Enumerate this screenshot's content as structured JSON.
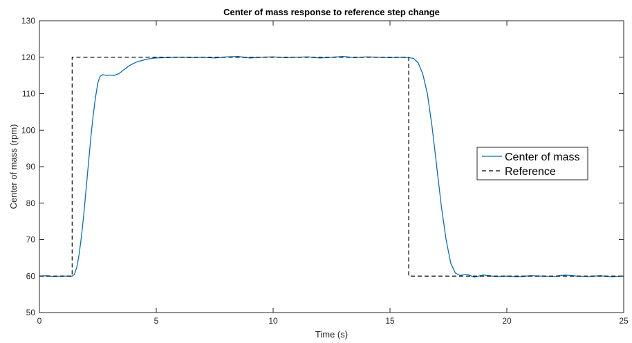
{
  "chart_data": {
    "type": "line",
    "title": "Center of mass response to reference step change",
    "xlabel": "Time (s)",
    "ylabel": "Center of mass (rpm)",
    "xlim": [
      0,
      25
    ],
    "ylim": [
      50,
      130
    ],
    "xticks": [
      0,
      5,
      10,
      15,
      20,
      25
    ],
    "yticks": [
      50,
      60,
      70,
      80,
      90,
      100,
      110,
      120,
      130
    ],
    "grid": false,
    "box": true,
    "legend_position": "right",
    "series": [
      {
        "name": "Center of mass",
        "color": "#0072BD",
        "style": "solid",
        "x": [
          0,
          0.3,
          0.6,
          0.9,
          1.2,
          1.4,
          1.5,
          1.6,
          1.7,
          1.8,
          1.9,
          2.0,
          2.1,
          2.2,
          2.3,
          2.4,
          2.5,
          2.6,
          2.7,
          2.8,
          2.9,
          3.0,
          3.2,
          3.4,
          3.6,
          3.8,
          4.0,
          4.2,
          4.5,
          4.8,
          5.0,
          5.5,
          6.0,
          6.5,
          7.0,
          7.5,
          8.0,
          8.5,
          9.0,
          9.5,
          10.0,
          10.5,
          11.0,
          11.5,
          12.0,
          12.5,
          13.0,
          13.5,
          14.0,
          14.5,
          15.0,
          15.5,
          15.8,
          16.0,
          16.2,
          16.4,
          16.6,
          16.8,
          17.0,
          17.2,
          17.4,
          17.6,
          17.8,
          18.0,
          18.3,
          18.6,
          19.0,
          19.5,
          20.0,
          20.5,
          21.0,
          21.5,
          22.0,
          22.5,
          23.0,
          23.5,
          24.0,
          24.5,
          25.0
        ],
        "y": [
          60.0,
          60.1,
          59.9,
          60.0,
          60.0,
          60.0,
          60.5,
          62.5,
          66,
          71,
          77,
          84,
          91,
          98,
          104,
          109,
          113,
          114.8,
          115.2,
          115.1,
          115.0,
          115.1,
          115.0,
          115.5,
          116.5,
          117.5,
          118.2,
          118.8,
          119.3,
          119.7,
          119.8,
          119.9,
          120.0,
          119.9,
          120.0,
          119.8,
          120.1,
          120.2,
          119.8,
          120.0,
          120.1,
          119.9,
          120.0,
          120.1,
          119.8,
          120.0,
          120.2,
          119.9,
          120.1,
          120.0,
          119.9,
          120.0,
          119.9,
          119.7,
          118.5,
          115.5,
          110,
          101,
          90,
          79,
          70,
          63.5,
          60.8,
          60.2,
          60.5,
          59.7,
          60.3,
          59.9,
          60.0,
          59.8,
          60.1,
          60.0,
          59.9,
          60.3,
          60.0,
          59.9,
          60.1,
          59.8,
          60.0
        ]
      },
      {
        "name": "Reference",
        "color": "#000000",
        "style": "dashed",
        "x": [
          0,
          1.4,
          1.4,
          15.8,
          15.8,
          25
        ],
        "y": [
          60,
          60,
          120,
          120,
          60,
          60
        ]
      }
    ]
  }
}
